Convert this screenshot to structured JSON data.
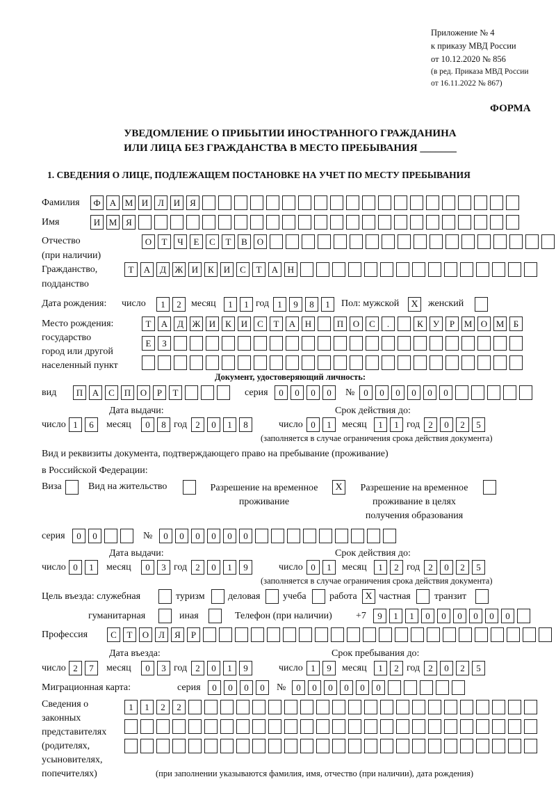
{
  "header": {
    "appendix": [
      "Приложение № 4",
      "к приказу МВД России",
      "от 10.12.2020 № 856"
    ],
    "revision": [
      "(в ред. Приказа МВД России",
      "от 16.11.2022 № 867)"
    ],
    "forma": "ФОРМА",
    "title1": "УВЕДОМЛЕНИЕ О ПРИБЫТИИ ИНОСТРАННОГО ГРАЖДАНИНА",
    "title2": "ИЛИ ЛИЦА БЕЗ ГРАЖДАНСТВА В МЕСТО ПРЕБЫВАНИЯ _______",
    "section1": "1. СВЕДЕНИЯ О ЛИЦЕ, ПОДЛЕЖАЩЕМ ПОСТАНОВКЕ НА УЧЕТ ПО МЕСТУ ПРЕБЫВАНИЯ"
  },
  "labels": {
    "surname": "Фамилия",
    "name": "Имя",
    "patronymic": "Отчество",
    "patronymic2": "(при наличии)",
    "citizenship": "Гражданство,",
    "citizenship2": "подданство",
    "dob": "Дата рождения:",
    "day": "число",
    "month": "месяц",
    "year": "год",
    "sex": "Пол: мужской",
    "female": "женский",
    "birthplace": [
      "Место рождения:",
      "государство",
      "город или другой",
      "населенный пункт"
    ],
    "id_doc": "Документ, удостоверяющий личность:",
    "kind": "вид",
    "series": "серия",
    "number": "№",
    "issue_date": "Дата выдачи:",
    "valid_until": "Срок действия до:",
    "validity_note": "(заполняется в случае ограничения срока действия документа)",
    "right_doc1": "Вид и реквизиты документа, подтверждающего право на пребывание (проживание)",
    "right_doc2": "в Российской Федерации:",
    "visa": "Виза",
    "residence_permit": "Вид на жительство",
    "temp_residence": [
      "Разрешение на временное",
      "проживание"
    ],
    "temp_residence_edu": [
      "Разрешение на временное",
      "проживание в целях",
      "получения образования"
    ],
    "purpose": "Цель въезда: служебная",
    "tourism": "туризм",
    "business": "деловая",
    "study": "учеба",
    "work": "работа",
    "private": "частная",
    "transit": "транзит",
    "humanitarian": "гуманитарная",
    "other": "иная",
    "phone": "Телефон (при наличии)",
    "phone_prefix": "+7",
    "profession": "Профессия",
    "entry_date": "Дата въезда:",
    "stay_until": "Срок пребывания до:",
    "migration_card": "Миграционная карта:",
    "reps": [
      "Сведения о",
      "законных",
      "представителях",
      "(родителях,",
      "усыновителях,",
      "попечителях)"
    ],
    "reps_note": "(при заполнении указываются фамилия, имя, отчество (при наличии), дата рождения)"
  },
  "fields": {
    "surname": [
      "Ф",
      "А",
      "М",
      "И",
      "Л",
      "И",
      "Я",
      "",
      "",
      "",
      "",
      "",
      "",
      "",
      "",
      "",
      "",
      "",
      "",
      "",
      "",
      "",
      "",
      "",
      "",
      "",
      ""
    ],
    "name": [
      "И",
      "М",
      "Я",
      "",
      "",
      "",
      "",
      "",
      "",
      "",
      "",
      "",
      "",
      "",
      "",
      "",
      "",
      "",
      "",
      "",
      "",
      "",
      "",
      "",
      "",
      "",
      ""
    ],
    "patronymic": [
      "О",
      "Т",
      "Ч",
      "Е",
      "С",
      "Т",
      "В",
      "О",
      "",
      "",
      "",
      "",
      "",
      "",
      "",
      "",
      "",
      "",
      "",
      "",
      "",
      "",
      "",
      "",
      "",
      ""
    ],
    "citizenship": [
      "Т",
      "А",
      "Д",
      "Ж",
      "И",
      "К",
      "И",
      "С",
      "Т",
      "А",
      "Н",
      "",
      "",
      "",
      "",
      "",
      "",
      "",
      "",
      "",
      "",
      "",
      "",
      "",
      "",
      ""
    ],
    "dob_day": [
      "1",
      "2"
    ],
    "dob_month": [
      "1",
      "1"
    ],
    "dob_year": [
      "1",
      "9",
      "8",
      "1"
    ],
    "sex_male": "X",
    "sex_female": "",
    "birthplace1": [
      "Т",
      "А",
      "Д",
      "Ж",
      "И",
      "К",
      "И",
      "С",
      "Т",
      "А",
      "Н",
      "",
      "П",
      "О",
      "С",
      ".",
      "",
      "К",
      "У",
      "Р",
      "М",
      "О",
      "М",
      "Б"
    ],
    "birthplace2": [
      "Е",
      "З",
      "",
      "",
      "",
      "",
      "",
      "",
      "",
      "",
      "",
      "",
      "",
      "",
      "",
      "",
      "",
      "",
      "",
      "",
      "",
      "",
      "",
      ""
    ],
    "birthplace3": [
      "",
      "",
      "",
      "",
      "",
      "",
      "",
      "",
      "",
      "",
      "",
      "",
      "",
      "",
      "",
      "",
      "",
      "",
      "",
      "",
      "",
      "",
      "",
      ""
    ],
    "doc_kind": [
      "П",
      "А",
      "С",
      "П",
      "О",
      "Р",
      "Т",
      "",
      "",
      ""
    ],
    "doc_series": [
      "0",
      "0",
      "0",
      "0"
    ],
    "doc_number": [
      "0",
      "0",
      "0",
      "0",
      "0",
      "0",
      "",
      "",
      "",
      "",
      ""
    ],
    "doc_issue": {
      "day": [
        "1",
        "6"
      ],
      "month": [
        "0",
        "8"
      ],
      "year": [
        "2",
        "0",
        "1",
        "8"
      ]
    },
    "doc_valid": {
      "day": [
        "0",
        "1"
      ],
      "month": [
        "1",
        "1"
      ],
      "year": [
        "2",
        "0",
        "2",
        "5"
      ]
    },
    "visa": "",
    "residence_permit": "",
    "temp_residence": "X",
    "temp_residence_edu": "",
    "right_series": [
      "0",
      "0",
      "",
      ""
    ],
    "right_number": [
      "0",
      "0",
      "0",
      "0",
      "0",
      "0",
      "",
      "",
      "",
      "",
      "",
      "",
      "",
      "",
      ""
    ],
    "right_issue": {
      "day": [
        "0",
        "1"
      ],
      "month": [
        "0",
        "3"
      ],
      "year": [
        "2",
        "0",
        "1",
        "9"
      ]
    },
    "right_valid": {
      "day": [
        "0",
        "1"
      ],
      "month": [
        "1",
        "2"
      ],
      "year": [
        "2",
        "0",
        "2",
        "5"
      ]
    },
    "purpose": {
      "official": "",
      "tourism": "",
      "business": "",
      "study": "",
      "work": "X",
      "private": "",
      "transit": "",
      "humanitarian": "",
      "other": ""
    },
    "phone": [
      "9",
      "1",
      "1",
      "0",
      "0",
      "0",
      "0",
      "0",
      "0",
      ""
    ],
    "profession": [
      "С",
      "Т",
      "О",
      "Л",
      "Я",
      "Р",
      "",
      "",
      "",
      "",
      "",
      "",
      "",
      "",
      "",
      "",
      "",
      "",
      "",
      "",
      "",
      "",
      "",
      "",
      "",
      "",
      "",
      ""
    ],
    "entry": {
      "day": [
        "2",
        "7"
      ],
      "month": [
        "0",
        "3"
      ],
      "year": [
        "2",
        "0",
        "1",
        "9"
      ]
    },
    "stay": {
      "day": [
        "1",
        "9"
      ],
      "month": [
        "1",
        "2"
      ],
      "year": [
        "2",
        "0",
        "2",
        "5"
      ]
    },
    "mig_series": [
      "0",
      "0",
      "0",
      "0"
    ],
    "mig_number": [
      "0",
      "0",
      "0",
      "0",
      "0",
      "0",
      "",
      "",
      "",
      "",
      ""
    ],
    "reps1": [
      "1",
      "1",
      "2",
      "2",
      "",
      "",
      "",
      "",
      "",
      "",
      "",
      "",
      "",
      "",
      "",
      "",
      "",
      "",
      "",
      "",
      "",
      "",
      "",
      "",
      "",
      ""
    ],
    "reps2": [
      "",
      "",
      "",
      "",
      "",
      "",
      "",
      "",
      "",
      "",
      "",
      "",
      "",
      "",
      "",
      "",
      "",
      "",
      "",
      "",
      "",
      "",
      "",
      "",
      "",
      ""
    ],
    "reps3": [
      "",
      "",
      "",
      "",
      "",
      "",
      "",
      "",
      "",
      "",
      "",
      "",
      "",
      "",
      "",
      "",
      "",
      "",
      "",
      "",
      "",
      "",
      "",
      "",
      "",
      ""
    ]
  }
}
